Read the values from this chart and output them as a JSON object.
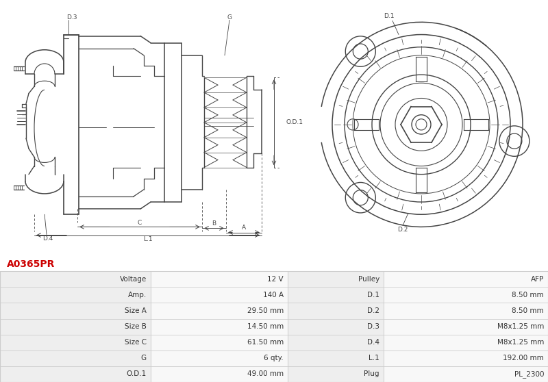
{
  "title": "A0365PR",
  "title_color": "#cc0000",
  "bg_color": "#ffffff",
  "table_col1_bg": "#eeeeee",
  "table_col2_bg": "#f8f8f8",
  "table_border_color": "#cccccc",
  "diagram_line_color": "#444444",
  "label_color": "#444444",
  "table_data": [
    [
      "Voltage",
      "12 V",
      "Pulley",
      "AFP"
    ],
    [
      "Amp.",
      "140 A",
      "D.1",
      "8.50 mm"
    ],
    [
      "Size A",
      "29.50 mm",
      "D.2",
      "8.50 mm"
    ],
    [
      "Size B",
      "14.50 mm",
      "D.3",
      "M8x1.25 mm"
    ],
    [
      "Size C",
      "61.50 mm",
      "D.4",
      "M8x1.25 mm"
    ],
    [
      "G",
      "6 qty.",
      "L.1",
      "192.00 mm"
    ],
    [
      "O.D.1",
      "49.00 mm",
      "Plug",
      "PL_2300"
    ]
  ]
}
